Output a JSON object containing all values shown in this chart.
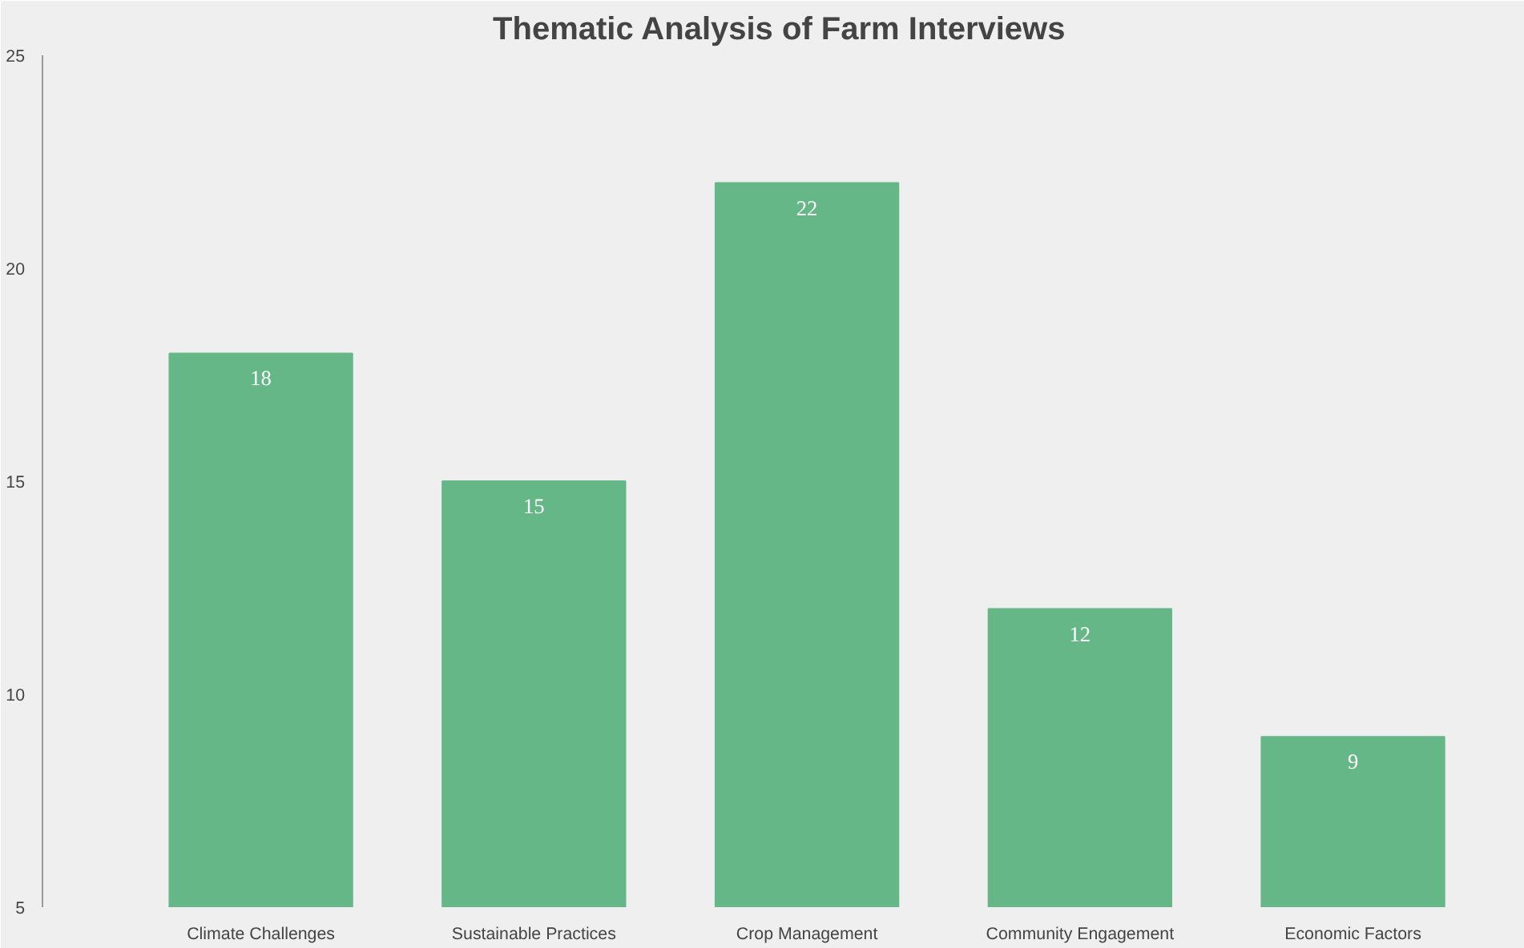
{
  "chart_data": {
    "type": "bar",
    "title": "Thematic Analysis of Farm Interviews",
    "categories": [
      "Climate Challenges",
      "Sustainable Practices",
      "Crop Management",
      "Community Engagement",
      "Economic Factors"
    ],
    "values": [
      18,
      15,
      22,
      12,
      9
    ],
    "color": "#66b787",
    "ylim": [
      5,
      25
    ],
    "yticks": [
      5,
      10,
      15,
      20,
      25
    ],
    "grid": false,
    "data_labels": true
  }
}
